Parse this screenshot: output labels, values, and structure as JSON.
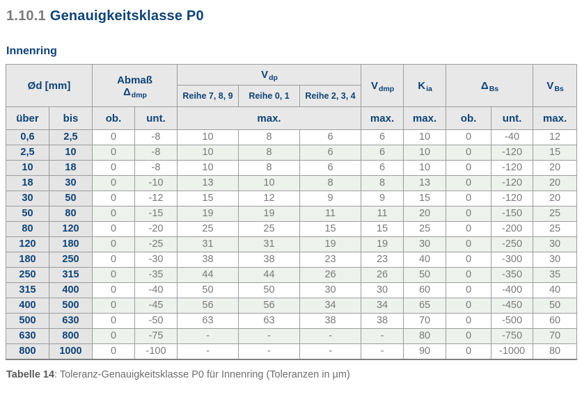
{
  "page": {
    "section_number": "1.10.1",
    "section_title": "Genauigkeitsklasse P0",
    "subtitle": "Innenring"
  },
  "caption": {
    "label": "Tabelle 14",
    "text": ": Toleranz-Genauigkeitsklasse P0 für Innenring (Toleranzen in µm)"
  },
  "colors": {
    "accent_blue": "#0e4377",
    "section_number_gray": "#7b7b7b",
    "header_bg": "#e8e8e8",
    "range_column_bg": "#e5e5e5",
    "green_row_bg": "#edf2ec",
    "value_text_gray": "#7a7a7a",
    "border_gray": "#9c9c9c"
  },
  "table": {
    "header": {
      "d_label": "Ød",
      "d_unit": "[mm]",
      "abmass": {
        "line1": "Abmaß",
        "sym": "Δ",
        "sub": "dmp"
      },
      "vdp": {
        "main": "V",
        "sub": "dp"
      },
      "reihe": [
        "Reihe 7, 8, 9",
        "Reihe 0, 1",
        "Reihe 2, 3, 4"
      ],
      "vdmp": {
        "main": "V",
        "sub": "dmp"
      },
      "kia": {
        "main": "K",
        "sub": "ia"
      },
      "dbs": {
        "main": "Δ",
        "sub": "Bs"
      },
      "vbs": {
        "main": "V",
        "sub": "Bs"
      },
      "sub": [
        "über",
        "bis",
        "ob.",
        "unt.",
        "max.",
        "max.",
        "max.",
        "ob.",
        "unt.",
        "max."
      ]
    },
    "rows": [
      [
        "0,6",
        "2,5",
        "0",
        "-8",
        "10",
        "8",
        "6",
        "6",
        "10",
        "0",
        "-40",
        "12"
      ],
      [
        "2,5",
        "10",
        "0",
        "-8",
        "10",
        "8",
        "6",
        "6",
        "10",
        "0",
        "-120",
        "15"
      ],
      [
        "10",
        "18",
        "0",
        "-8",
        "10",
        "8",
        "6",
        "6",
        "10",
        "0",
        "-120",
        "20"
      ],
      [
        "18",
        "30",
        "0",
        "-10",
        "13",
        "10",
        "8",
        "8",
        "13",
        "0",
        "-120",
        "20"
      ],
      [
        "30",
        "50",
        "0",
        "-12",
        "15",
        "12",
        "9",
        "9",
        "15",
        "0",
        "-120",
        "20"
      ],
      [
        "50",
        "80",
        "0",
        "-15",
        "19",
        "19",
        "11",
        "11",
        "20",
        "0",
        "-150",
        "25"
      ],
      [
        "80",
        "120",
        "0",
        "-20",
        "25",
        "25",
        "15",
        "15",
        "25",
        "0",
        "-200",
        "25"
      ],
      [
        "120",
        "180",
        "0",
        "-25",
        "31",
        "31",
        "19",
        "19",
        "30",
        "0",
        "-250",
        "30"
      ],
      [
        "180",
        "250",
        "0",
        "-30",
        "38",
        "38",
        "23",
        "23",
        "40",
        "0",
        "-300",
        "30"
      ],
      [
        "250",
        "315",
        "0",
        "-35",
        "44",
        "44",
        "26",
        "26",
        "50",
        "0",
        "-350",
        "35"
      ],
      [
        "315",
        "400",
        "0",
        "-40",
        "50",
        "50",
        "30",
        "30",
        "60",
        "0",
        "-400",
        "40"
      ],
      [
        "400",
        "500",
        "0",
        "-45",
        "56",
        "56",
        "34",
        "34",
        "65",
        "0",
        "-450",
        "50"
      ],
      [
        "500",
        "630",
        "0",
        "-50",
        "63",
        "63",
        "38",
        "38",
        "70",
        "0",
        "-500",
        "60"
      ],
      [
        "630",
        "800",
        "0",
        "-75",
        "-",
        "-",
        "-",
        "-",
        "80",
        "0",
        "-750",
        "70"
      ],
      [
        "800",
        "1000",
        "0",
        "-100",
        "-",
        "-",
        "-",
        "-",
        "90",
        "0",
        "-1000",
        "80"
      ]
    ]
  }
}
